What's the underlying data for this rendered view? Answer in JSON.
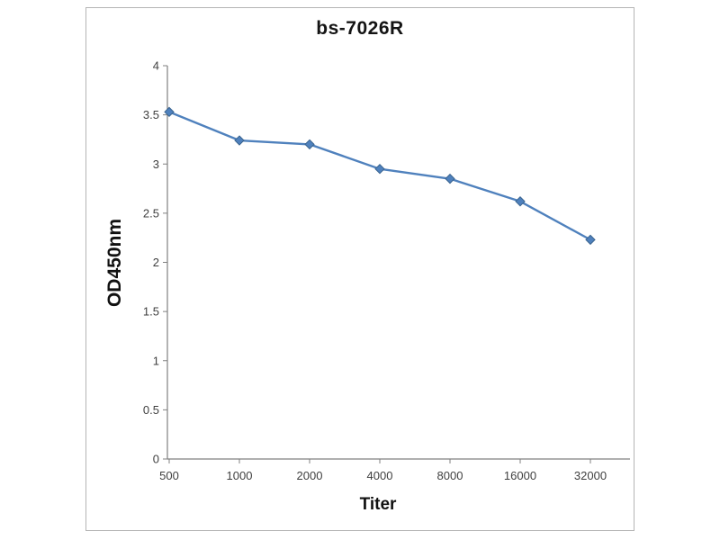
{
  "chart_data": {
    "type": "line",
    "title": "bs-7026R",
    "xlabel": "Titer",
    "ylabel": "OD450nm",
    "categories": [
      "500",
      "1000",
      "2000",
      "4000",
      "8000",
      "16000",
      "32000"
    ],
    "series": [
      {
        "name": "bs-7026R",
        "values": [
          3.53,
          3.24,
          3.2,
          2.95,
          2.85,
          2.62,
          2.23
        ]
      }
    ],
    "ylim": [
      0,
      4
    ],
    "ytick_step": 0.5,
    "grid": false,
    "legend": "none",
    "marker": "diamond",
    "line_color": "#4f81bd",
    "marker_stroke_color": "#3a648f",
    "axis_color": "#808080",
    "text_color": "#3f3f3f",
    "panel_border_color": "#b5b5b5"
  }
}
